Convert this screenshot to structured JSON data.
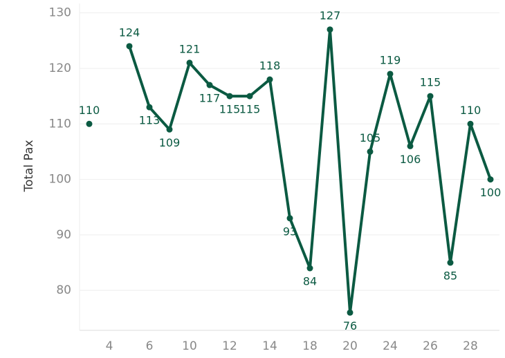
{
  "chart_data": {
    "type": "line",
    "y_label": "Total Pax",
    "categories": [
      null,
      "4",
      null,
      "6",
      null,
      "10",
      null,
      "12",
      null,
      "14",
      null,
      "18",
      null,
      "20",
      null,
      "24",
      null,
      "26",
      null,
      "28",
      null
    ],
    "series": [
      {
        "name": "Total Pax",
        "color": "#0b5a42",
        "values": [
          110,
          null,
          124,
          113,
          109,
          121,
          117,
          115,
          115,
          118,
          93,
          84,
          127,
          76,
          105,
          119,
          106,
          115,
          85,
          110,
          100
        ]
      }
    ],
    "ylim": [
      72.8,
      131.7
    ],
    "yticks": [
      80,
      90,
      100,
      110,
      120,
      130
    ],
    "grid": true
  }
}
